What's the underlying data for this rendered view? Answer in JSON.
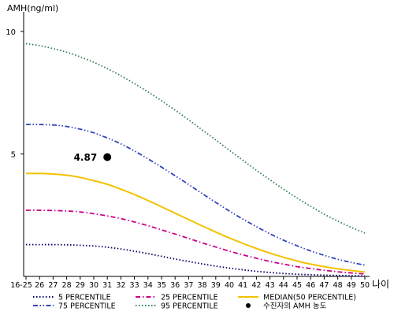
{
  "chart_data": {
    "type": "line",
    "ylabel": "AMH(ng/ml)",
    "xlabel": "나이",
    "x": [
      "16-25",
      "26",
      "27",
      "28",
      "29",
      "30",
      "31",
      "32",
      "33",
      "34",
      "35",
      "36",
      "37",
      "38",
      "39",
      "40",
      "41",
      "42",
      "43",
      "44",
      "45",
      "46",
      "47",
      "48",
      "49",
      "50"
    ],
    "yticks": [
      5,
      10
    ],
    "ylim": [
      0,
      10.8
    ],
    "grid": false,
    "legend_position": "bottom",
    "series": [
      {
        "name": "5 PERCENTILE",
        "color": "#000066",
        "dash": "dot",
        "values": [
          1.3,
          1.3,
          1.3,
          1.29,
          1.27,
          1.24,
          1.19,
          1.12,
          1.03,
          0.93,
          0.82,
          0.71,
          0.61,
          0.51,
          0.42,
          0.34,
          0.27,
          0.21,
          0.16,
          0.12,
          0.09,
          0.07,
          0.05,
          0.04,
          0.03,
          0.02
        ]
      },
      {
        "name": "25 PERCENTILE",
        "color": "#cc0088",
        "dash": "dashdot",
        "values": [
          2.7,
          2.7,
          2.69,
          2.67,
          2.63,
          2.56,
          2.47,
          2.36,
          2.22,
          2.07,
          1.9,
          1.73,
          1.55,
          1.37,
          1.2,
          1.03,
          0.88,
          0.74,
          0.61,
          0.5,
          0.4,
          0.32,
          0.25,
          0.19,
          0.14,
          0.1
        ]
      },
      {
        "name": "MEDIAN(50 PERCENTILE)",
        "color": "#f2c200",
        "dash": "solid",
        "values": [
          4.2,
          4.2,
          4.18,
          4.13,
          4.04,
          3.91,
          3.76,
          3.56,
          3.34,
          3.1,
          2.84,
          2.58,
          2.32,
          2.06,
          1.81,
          1.57,
          1.35,
          1.14,
          0.95,
          0.78,
          0.63,
          0.5,
          0.4,
          0.31,
          0.24,
          0.18
        ]
      },
      {
        "name": "75 PERCENTILE",
        "color": "#3344bb",
        "dash": "dashdotdot",
        "values": [
          6.2,
          6.2,
          6.18,
          6.12,
          6.01,
          5.86,
          5.65,
          5.41,
          5.12,
          4.8,
          4.46,
          4.11,
          3.75,
          3.38,
          3.02,
          2.67,
          2.34,
          2.03,
          1.74,
          1.48,
          1.25,
          1.04,
          0.86,
          0.7,
          0.57,
          0.46
        ]
      },
      {
        "name": "95 PERCENTILE",
        "color": "#2e7d4f",
        "dash": "dot",
        "values": [
          9.5,
          9.42,
          9.3,
          9.15,
          8.96,
          8.74,
          8.48,
          8.19,
          7.87,
          7.53,
          7.17,
          6.79,
          6.39,
          5.98,
          5.57,
          5.15,
          4.74,
          4.33,
          3.94,
          3.56,
          3.2,
          2.86,
          2.54,
          2.26,
          2.0,
          1.77
        ]
      }
    ],
    "points": [
      {
        "name": "수진자의 AMH 농도",
        "x": "31",
        "y": 4.87,
        "label": "4.87",
        "color": "#000000"
      }
    ]
  }
}
